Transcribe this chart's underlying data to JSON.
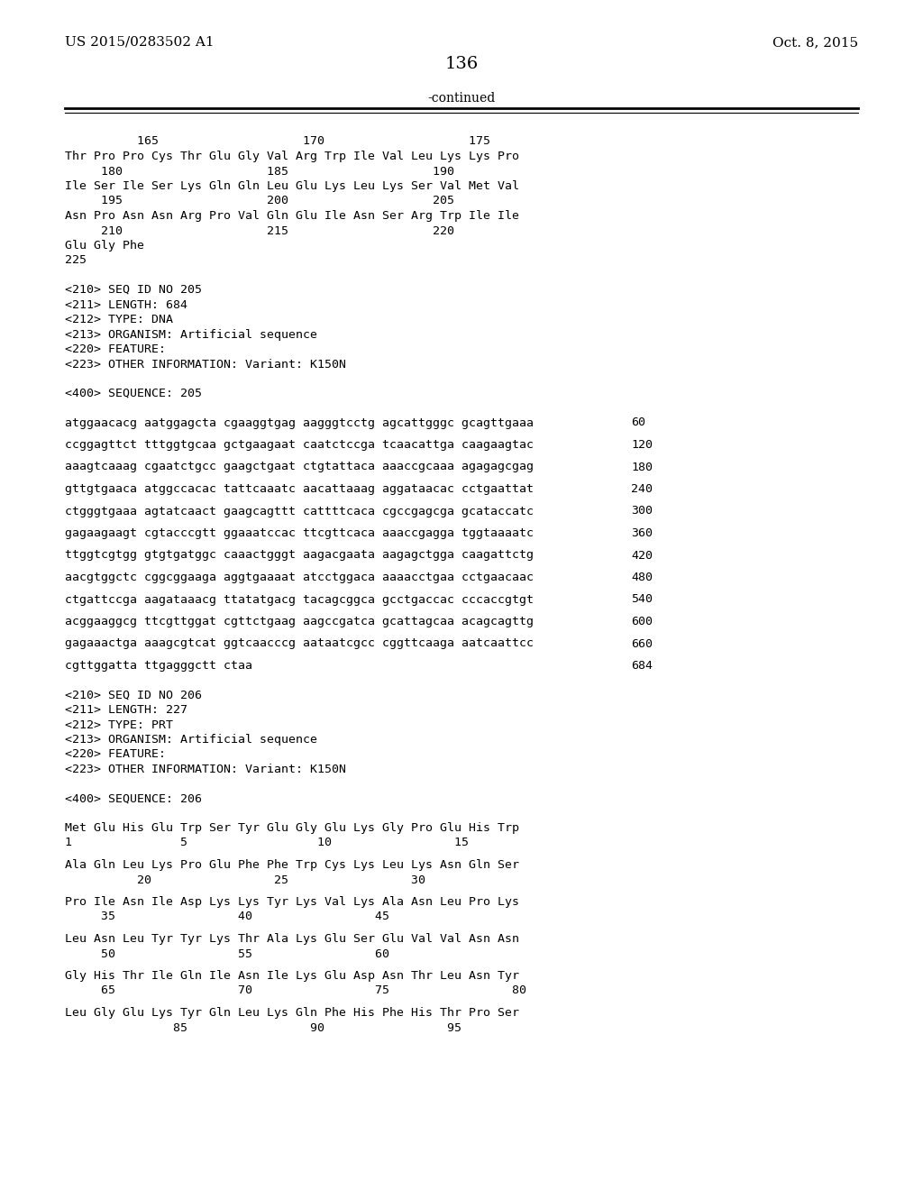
{
  "header_left": "US 2015/0283502 A1",
  "header_right": "Oct. 8, 2015",
  "page_number": "136",
  "continued_text": "-continued",
  "background_color": "#ffffff",
  "text_color": "#000000",
  "mono_size": 9.5,
  "serif_size": 11,
  "page_num_size": 14,
  "continued_size": 10,
  "seq_blocks": [
    {
      "type": "amino_ruler",
      "text": "          165                    170                    175"
    },
    {
      "type": "amino_seq",
      "text": "Thr Pro Pro Cys Thr Glu Gly Val Arg Trp Ile Val Leu Lys Lys Pro"
    },
    {
      "type": "amino_ruler",
      "text": "     180                    185                    190"
    },
    {
      "type": "amino_seq",
      "text": "Ile Ser Ile Ser Lys Gln Gln Leu Glu Lys Leu Lys Ser Val Met Val"
    },
    {
      "type": "amino_ruler",
      "text": "     195                    200                    205"
    },
    {
      "type": "amino_seq",
      "text": "Asn Pro Asn Asn Arg Pro Val Gln Glu Ile Asn Ser Arg Trp Ile Ile"
    },
    {
      "type": "amino_ruler",
      "text": "     210                    215                    220"
    },
    {
      "type": "amino_seq",
      "text": "Glu Gly Phe"
    },
    {
      "type": "amino_ruler",
      "text": "225"
    },
    {
      "type": "blank"
    },
    {
      "type": "meta",
      "text": "<210> SEQ ID NO 205"
    },
    {
      "type": "meta",
      "text": "<211> LENGTH: 684"
    },
    {
      "type": "meta",
      "text": "<212> TYPE: DNA"
    },
    {
      "type": "meta",
      "text": "<213> ORGANISM: Artificial sequence"
    },
    {
      "type": "meta",
      "text": "<220> FEATURE:"
    },
    {
      "type": "meta",
      "text": "<223> OTHER INFORMATION: Variant: K150N"
    },
    {
      "type": "blank"
    },
    {
      "type": "meta",
      "text": "<400> SEQUENCE: 205"
    },
    {
      "type": "blank"
    },
    {
      "type": "dna",
      "text": "atggaacacg aatggagcta cgaaggtgag aagggtcctg agcattgggc gcagttgaaa",
      "num": "60"
    },
    {
      "type": "blank_small"
    },
    {
      "type": "dna",
      "text": "ccggagttct tttggtgcaa gctgaagaat caatctccga tcaacattga caagaagtac",
      "num": "120"
    },
    {
      "type": "blank_small"
    },
    {
      "type": "dna",
      "text": "aaagtcaaag cgaatctgcc gaagctgaat ctgtattaca aaaccgcaaa agagagcgag",
      "num": "180"
    },
    {
      "type": "blank_small"
    },
    {
      "type": "dna",
      "text": "gttgtgaaca atggccacac tattcaaatc aacattaaag aggataacac cctgaattat",
      "num": "240"
    },
    {
      "type": "blank_small"
    },
    {
      "type": "dna",
      "text": "ctgggtgaaa agtatcaact gaagcagttt cattttcaca cgccgagcga gcataccatc",
      "num": "300"
    },
    {
      "type": "blank_small"
    },
    {
      "type": "dna",
      "text": "gagaagaagt cgtacccgtt ggaaatccac ttcgttcaca aaaccgagga tggtaaaatc",
      "num": "360"
    },
    {
      "type": "blank_small"
    },
    {
      "type": "dna",
      "text": "ttggtcgtgg gtgtgatggc caaactgggt aagacgaata aagagctgga caagattctg",
      "num": "420"
    },
    {
      "type": "blank_small"
    },
    {
      "type": "dna",
      "text": "aacgtggctc cggcggaaga aggtgaaaat atcctggaca aaaacctgaa cctgaacaac",
      "num": "480"
    },
    {
      "type": "blank_small"
    },
    {
      "type": "dna",
      "text": "ctgattccga aagataaacg ttatatgacg tacagcggca gcctgaccac cccaccgtgt",
      "num": "540"
    },
    {
      "type": "blank_small"
    },
    {
      "type": "dna",
      "text": "acggaaggcg ttcgttggat cgttctgaag aagccgatca gcattagcaa acagcagttg",
      "num": "600"
    },
    {
      "type": "blank_small"
    },
    {
      "type": "dna",
      "text": "gagaaactga aaagcgtcat ggtcaacccg aataatcgcc cggttcaaga aatcaattcc",
      "num": "660"
    },
    {
      "type": "blank_small"
    },
    {
      "type": "dna",
      "text": "cgttggatta ttgagggctt ctaa",
      "num": "684"
    },
    {
      "type": "blank"
    },
    {
      "type": "meta",
      "text": "<210> SEQ ID NO 206"
    },
    {
      "type": "meta",
      "text": "<211> LENGTH: 227"
    },
    {
      "type": "meta",
      "text": "<212> TYPE: PRT"
    },
    {
      "type": "meta",
      "text": "<213> ORGANISM: Artificial sequence"
    },
    {
      "type": "meta",
      "text": "<220> FEATURE:"
    },
    {
      "type": "meta",
      "text": "<223> OTHER INFORMATION: Variant: K150N"
    },
    {
      "type": "blank"
    },
    {
      "type": "meta",
      "text": "<400> SEQUENCE: 206"
    },
    {
      "type": "blank"
    },
    {
      "type": "amino_seq",
      "text": "Met Glu His Glu Trp Ser Tyr Glu Gly Glu Lys Gly Pro Glu His Trp"
    },
    {
      "type": "amino_ruler",
      "text": "1               5                  10                 15"
    },
    {
      "type": "blank_small"
    },
    {
      "type": "amino_seq",
      "text": "Ala Gln Leu Lys Pro Glu Phe Phe Trp Cys Lys Leu Lys Asn Gln Ser"
    },
    {
      "type": "amino_ruler",
      "text": "          20                 25                 30"
    },
    {
      "type": "blank_small"
    },
    {
      "type": "amino_seq",
      "text": "Pro Ile Asn Ile Asp Lys Lys Tyr Lys Val Lys Ala Asn Leu Pro Lys"
    },
    {
      "type": "amino_ruler",
      "text": "     35                 40                 45"
    },
    {
      "type": "blank_small"
    },
    {
      "type": "amino_seq",
      "text": "Leu Asn Leu Tyr Tyr Lys Thr Ala Lys Glu Ser Glu Val Val Asn Asn"
    },
    {
      "type": "amino_ruler",
      "text": "     50                 55                 60"
    },
    {
      "type": "blank_small"
    },
    {
      "type": "amino_seq",
      "text": "Gly His Thr Ile Gln Ile Asn Ile Lys Glu Asp Asn Thr Leu Asn Tyr"
    },
    {
      "type": "amino_ruler",
      "text": "     65                 70                 75                 80"
    },
    {
      "type": "blank_small"
    },
    {
      "type": "amino_seq",
      "text": "Leu Gly Glu Lys Tyr Gln Leu Lys Gln Phe His Phe His Thr Pro Ser"
    },
    {
      "type": "amino_ruler",
      "text": "               85                 90                 95"
    }
  ]
}
